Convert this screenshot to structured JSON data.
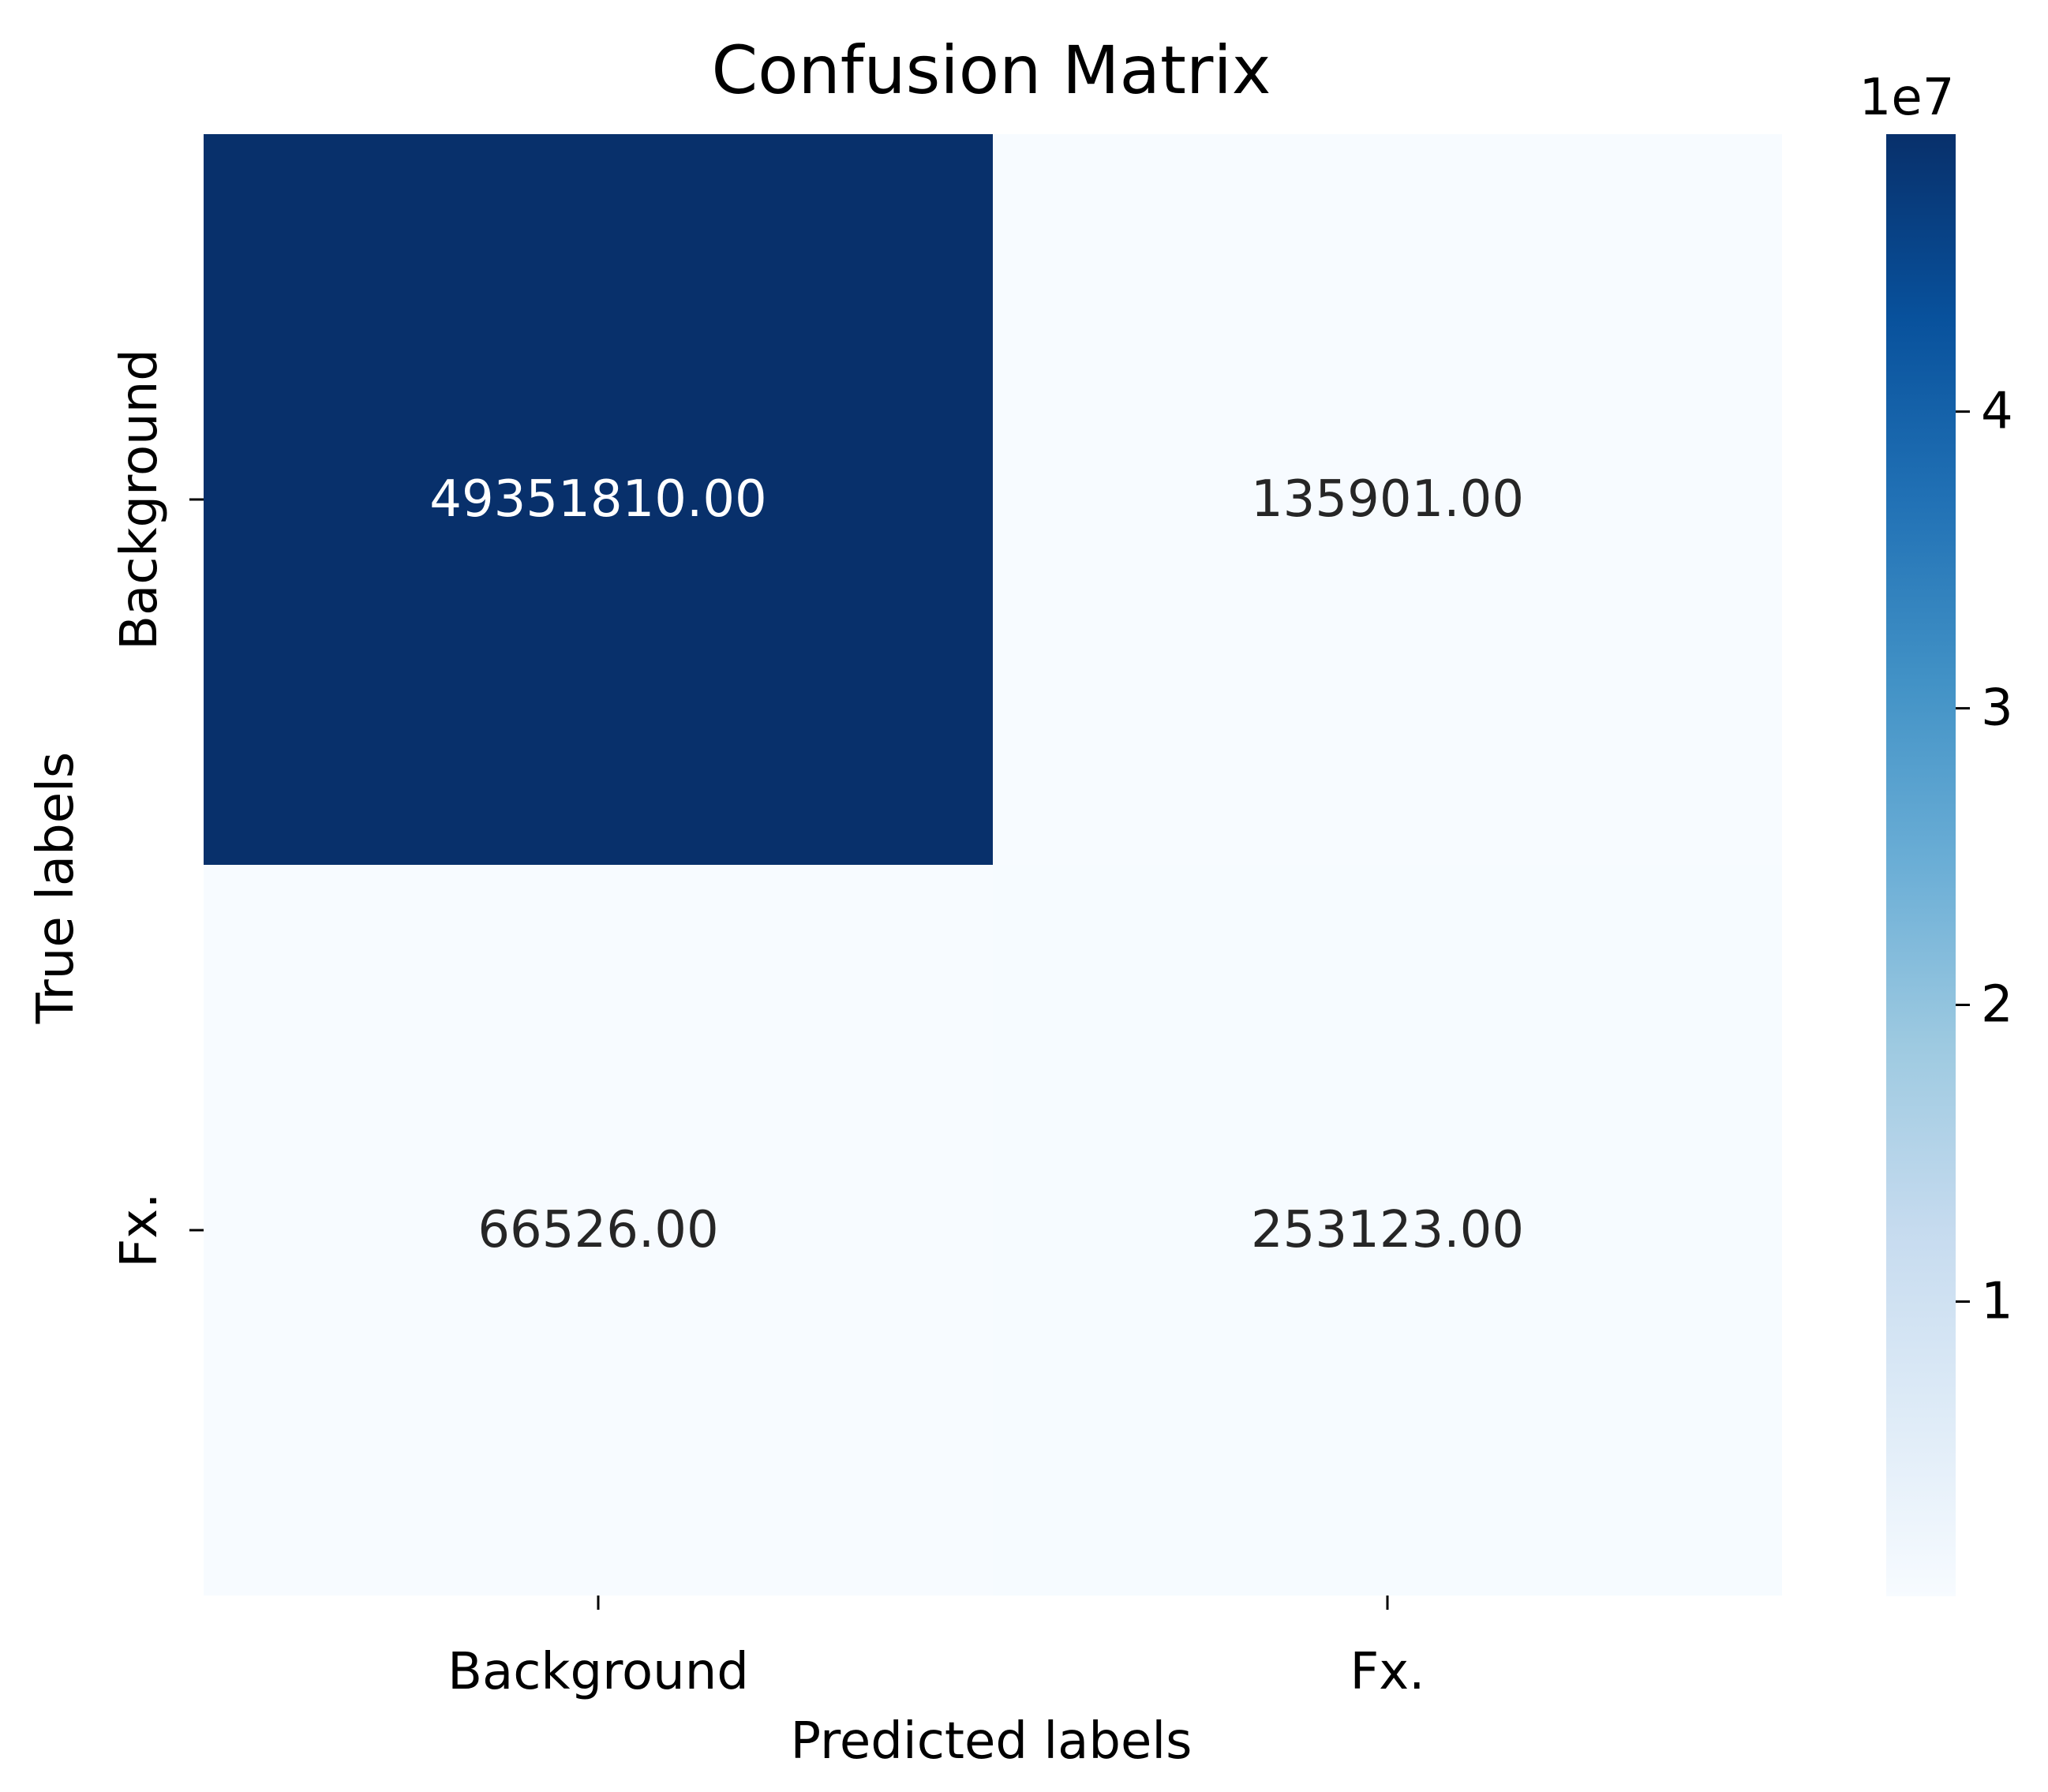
{
  "chart_data": {
    "type": "heatmap",
    "title": "Confusion Matrix",
    "xlabel": "Predicted labels",
    "ylabel": "True labels",
    "x_categories": [
      "Background",
      "Fx."
    ],
    "y_categories": [
      "Background",
      "Fx."
    ],
    "values": [
      [
        49351810.0,
        135901.0
      ],
      [
        66526.0,
        253123.0
      ]
    ],
    "cell_labels": [
      [
        "49351810.00",
        "135901.00"
      ],
      [
        "66526.00",
        "253123.00"
      ]
    ],
    "colormap": "Blues",
    "colorbar": {
      "range": [
        66526.0,
        49351810.0
      ],
      "ticks": [
        10000000,
        20000000,
        30000000,
        40000000
      ],
      "tick_labels": [
        "1",
        "2",
        "3",
        "4"
      ],
      "offset_label": "1e7"
    },
    "colors": {
      "low": "#f7fbff",
      "high": "#08306b",
      "text_on_dark": "#ffffff",
      "text_on_light": "#262626"
    }
  }
}
